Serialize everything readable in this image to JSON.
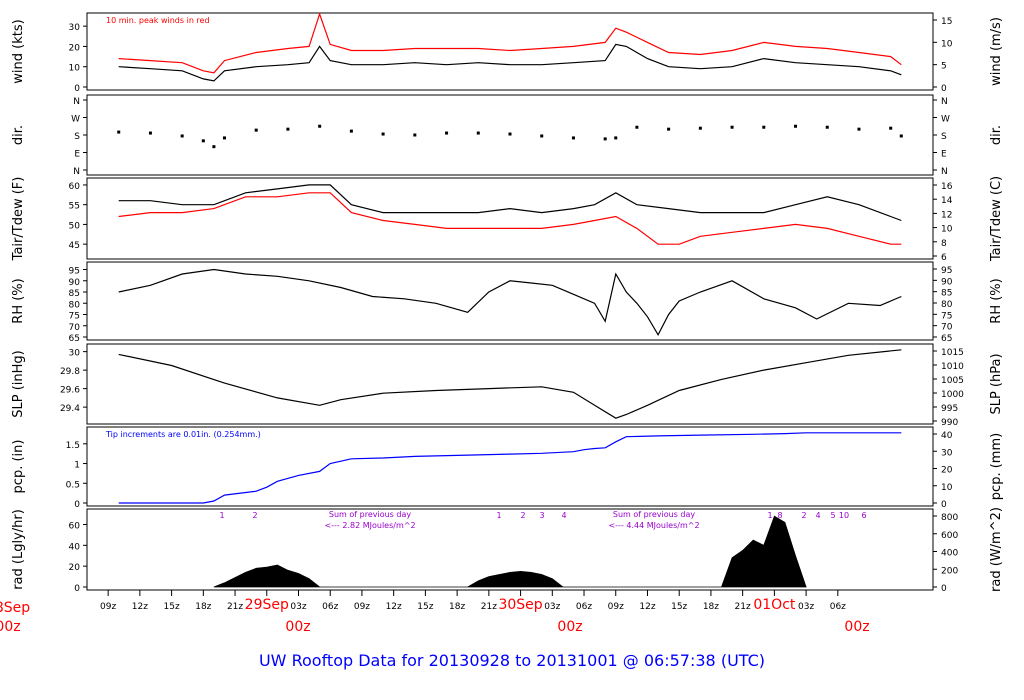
{
  "colors": {
    "black": "#000000",
    "red": "#ff0000",
    "blue": "#0000ff",
    "purple": "#9900cc",
    "date_red": "#ff0000",
    "title_blue": "#0000ff"
  },
  "title": "UW Rooftop Data for 20130928  to  20131001 @ 06:57:38  (UTC)",
  "x_axis": {
    "tick_labels": [
      "09z",
      "12z",
      "15z",
      "18z",
      "21z",
      "29Sep",
      "03z",
      "06z",
      "09z",
      "12z",
      "15z",
      "18z",
      "21z",
      "30Sep",
      "03z",
      "06z",
      "09z",
      "12z",
      "15z",
      "18z",
      "21z",
      "01Oct",
      "03z",
      "06z"
    ],
    "date_labels": [
      {
        "date": "28Sep",
        "hour": "00z"
      },
      {
        "date": "29Sep",
        "hour": "00z"
      },
      {
        "date": "30Sep",
        "hour": "00z"
      },
      {
        "date": "01Oct",
        "hour": "00z"
      }
    ]
  },
  "chart_data": [
    {
      "type": "line",
      "panel": "wind",
      "ylabel": "wind (kts)",
      "ylabel_right": "wind (m/s)",
      "yticks": [
        0,
        10,
        20,
        30
      ],
      "yticks_right": [
        0,
        5,
        10,
        15
      ],
      "ylim": [
        0,
        35
      ],
      "annotation": "10 min. peak winds in red",
      "series": [
        {
          "color": "#000000",
          "x_hours": [
            5,
            8,
            11,
            13,
            14,
            15,
            18,
            21,
            23,
            24,
            25,
            27,
            30,
            33,
            36,
            39,
            42,
            45,
            48,
            51,
            52,
            53,
            55,
            57,
            60,
            63,
            66,
            69,
            72,
            75,
            78,
            79
          ],
          "values": [
            10,
            9,
            8,
            4,
            3,
            8,
            10,
            11,
            12,
            20,
            13,
            11,
            11,
            12,
            11,
            12,
            11,
            11,
            12,
            13,
            21,
            20,
            14,
            10,
            9,
            10,
            14,
            12,
            11,
            10,
            8,
            6
          ]
        },
        {
          "color": "#ff0000",
          "x_hours": [
            5,
            8,
            11,
            13,
            14,
            15,
            18,
            21,
            23,
            24,
            25,
            27,
            30,
            33,
            36,
            39,
            42,
            45,
            48,
            51,
            52,
            53,
            55,
            57,
            60,
            63,
            66,
            69,
            72,
            75,
            78,
            79
          ],
          "values": [
            14,
            13,
            12,
            8,
            7,
            13,
            17,
            19,
            20,
            36,
            21,
            18,
            18,
            19,
            19,
            19,
            18,
            19,
            20,
            22,
            29,
            27,
            22,
            17,
            16,
            18,
            22,
            20,
            19,
            17,
            15,
            11
          ]
        }
      ]
    },
    {
      "type": "scatter",
      "panel": "direction",
      "ylabel": "dir.",
      "ylabel_right": "dir.",
      "yticks": [
        "N",
        "E",
        "S",
        "W",
        "N"
      ],
      "yticks_right": [
        "N",
        "E",
        "S",
        "W",
        "N"
      ],
      "series": [
        {
          "color": "#000000",
          "x_hours": [
            5,
            8,
            11,
            13,
            14,
            15,
            18,
            21,
            24,
            27,
            30,
            33,
            36,
            39,
            42,
            45,
            48,
            51,
            52,
            54,
            57,
            60,
            63,
            66,
            69,
            72,
            75,
            78,
            79
          ],
          "values": [
            195,
            190,
            175,
            150,
            120,
            165,
            205,
            210,
            225,
            200,
            185,
            180,
            190,
            190,
            185,
            175,
            165,
            160,
            165,
            220,
            210,
            215,
            220,
            220,
            225,
            220,
            210,
            215,
            175
          ]
        }
      ]
    },
    {
      "type": "line",
      "panel": "temperature",
      "ylabel": "Tair/Tdew (F)",
      "ylabel_right": "Tair/Tdew (C)",
      "yticks": [
        45,
        50,
        55,
        60
      ],
      "yticks_right": [
        6,
        8,
        10,
        12,
        14,
        16
      ],
      "ylim": [
        42,
        61
      ],
      "series": [
        {
          "color": "#000000",
          "x_hours": [
            5,
            8,
            11,
            14,
            17,
            20,
            23,
            25,
            27,
            30,
            33,
            36,
            39,
            42,
            45,
            48,
            50,
            52,
            54,
            57,
            60,
            63,
            66,
            69,
            72,
            75,
            78,
            79
          ],
          "values": [
            56,
            56,
            55,
            55,
            58,
            59,
            60,
            60,
            55,
            53,
            53,
            53,
            53,
            54,
            53,
            54,
            55,
            58,
            55,
            54,
            53,
            53,
            53,
            55,
            57,
            55,
            52,
            51
          ]
        },
        {
          "color": "#ff0000",
          "x_hours": [
            5,
            8,
            11,
            14,
            17,
            20,
            23,
            25,
            27,
            30,
            33,
            36,
            39,
            42,
            45,
            48,
            50,
            52,
            54,
            56,
            58,
            60,
            63,
            66,
            69,
            72,
            75,
            78,
            79
          ],
          "values": [
            52,
            53,
            53,
            54,
            57,
            57,
            58,
            58,
            53,
            51,
            50,
            49,
            49,
            49,
            49,
            50,
            51,
            52,
            49,
            45,
            45,
            47,
            48,
            49,
            50,
            49,
            47,
            45,
            45
          ]
        }
      ]
    },
    {
      "type": "line",
      "panel": "humidity",
      "ylabel": "RH (%)",
      "ylabel_right": "RH (%)",
      "yticks": [
        65,
        70,
        75,
        80,
        85,
        90,
        95
      ],
      "ylim": [
        65,
        97
      ],
      "series": [
        {
          "color": "#000000",
          "x_hours": [
            5,
            8,
            11,
            14,
            17,
            20,
            23,
            26,
            29,
            32,
            35,
            38,
            40,
            42,
            44,
            46,
            48,
            50,
            51,
            52,
            53,
            54,
            55,
            56,
            57,
            58,
            60,
            63,
            66,
            69,
            71,
            74,
            77,
            79
          ],
          "values": [
            85,
            88,
            93,
            95,
            93,
            92,
            90,
            87,
            83,
            82,
            80,
            76,
            85,
            90,
            89,
            88,
            84,
            80,
            72,
            93,
            85,
            80,
            74,
            66,
            75,
            81,
            85,
            90,
            82,
            78,
            73,
            80,
            79,
            83
          ]
        }
      ]
    },
    {
      "type": "line",
      "panel": "pressure",
      "ylabel": "SLP (inHg)",
      "ylabel_right": "SLP (hPa)",
      "yticks": [
        29.4,
        29.6,
        29.8,
        30.0
      ],
      "yticks_right": [
        990,
        995,
        1000,
        1005,
        1010,
        1015
      ],
      "ylim": [
        29.25,
        30.05
      ],
      "series": [
        {
          "color": "#000000",
          "x_hours": [
            5,
            10,
            15,
            20,
            24,
            26,
            30,
            35,
            40,
            45,
            48,
            50,
            52,
            53,
            55,
            58,
            62,
            66,
            70,
            74,
            79
          ],
          "values": [
            29.97,
            29.85,
            29.66,
            29.5,
            29.42,
            29.48,
            29.55,
            29.58,
            29.6,
            29.62,
            29.56,
            29.42,
            29.28,
            29.32,
            29.42,
            29.58,
            29.7,
            29.8,
            29.88,
            29.96,
            30.02
          ]
        }
      ]
    },
    {
      "type": "line",
      "panel": "precipitation",
      "ylabel": "pcp. (in)",
      "ylabel_right": "pcp. (mm)",
      "yticks": [
        0.0,
        0.5,
        1.0,
        1.5
      ],
      "yticks_right": [
        0,
        10,
        20,
        30,
        40
      ],
      "ylim": [
        0,
        1.85
      ],
      "annotation": "Tip increments are 0.01in. (0.254mm.)",
      "series": [
        {
          "color": "#0000ff",
          "x_hours": [
            5,
            13,
            14,
            15,
            18,
            19,
            20,
            22,
            24,
            25,
            27,
            30,
            33,
            36,
            39,
            42,
            45,
            48,
            49,
            50,
            51,
            52,
            53,
            56,
            60,
            65,
            68,
            70,
            72,
            79
          ],
          "values": [
            0,
            0,
            0.05,
            0.2,
            0.3,
            0.4,
            0.55,
            0.7,
            0.8,
            1.0,
            1.12,
            1.14,
            1.18,
            1.2,
            1.22,
            1.24,
            1.26,
            1.3,
            1.35,
            1.38,
            1.4,
            1.55,
            1.68,
            1.7,
            1.72,
            1.74,
            1.76,
            1.78,
            1.78,
            1.78
          ]
        }
      ]
    },
    {
      "type": "area",
      "panel": "radiation",
      "ylabel": "rad (Lgly/hr)",
      "ylabel_right": "rad (W/m^2)",
      "yticks": [
        0,
        20,
        40,
        60
      ],
      "yticks_right": [
        0,
        200,
        400,
        600,
        800
      ],
      "ylim": [
        0,
        72
      ],
      "annotations": [
        {
          "text": "Sum of previous day",
          "sub": "<--- 2.82 MJoules/m^2"
        },
        {
          "text": "Sum of previous day",
          "sub": "<--- 4.44 MJoules/m^2"
        }
      ],
      "marker_labels": [
        "1",
        "2",
        "1",
        "2",
        "3",
        "4",
        "1",
        "2",
        "4",
        "5",
        "6",
        "8",
        "10"
      ],
      "series": [
        {
          "color": "#000000",
          "x_hours": [
            14,
            15,
            16,
            17,
            18,
            19,
            20,
            21,
            22,
            23,
            24,
            38,
            39,
            40,
            41,
            42,
            43,
            44,
            45,
            46,
            47,
            62,
            63,
            64,
            65,
            66,
            67,
            68,
            69,
            70
          ],
          "values": [
            0,
            4,
            9,
            14,
            18,
            19,
            21,
            16,
            13,
            8,
            0,
            0,
            6,
            10,
            12,
            14,
            15,
            14,
            12,
            8,
            0,
            0,
            28,
            35,
            45,
            40,
            68,
            62,
            30,
            0
          ]
        }
      ]
    }
  ]
}
